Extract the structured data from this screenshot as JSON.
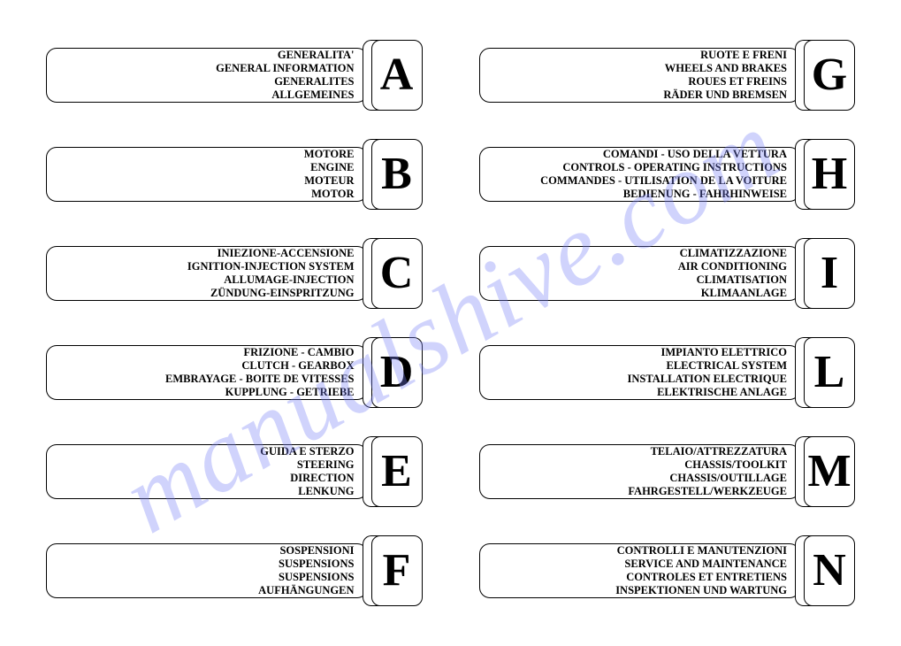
{
  "watermark": "manualshive.com",
  "left": [
    {
      "letter": "A",
      "lines": [
        "GENERALITA'",
        "GENERAL INFORMATION",
        "GENERALITES",
        "ALLGEMEINES"
      ]
    },
    {
      "letter": "B",
      "lines": [
        "MOTORE",
        "ENGINE",
        "MOTEUR",
        "MOTOR"
      ]
    },
    {
      "letter": "C",
      "lines": [
        "INIEZIONE-ACCENSIONE",
        "IGNITION-INJECTION SYSTEM",
        "ALLUMAGE-INJECTION",
        "ZÜNDUNG-EINSPRITZUNG"
      ]
    },
    {
      "letter": "D",
      "lines": [
        "FRIZIONE - CAMBIO",
        "CLUTCH - GEARBOX",
        "EMBRAYAGE - BOITE DE VITESSES",
        "KUPPLUNG - GETRIEBE"
      ]
    },
    {
      "letter": "E",
      "lines": [
        "GUIDA E STERZO",
        "STEERING",
        "DIRECTION",
        "LENKUNG"
      ]
    },
    {
      "letter": "F",
      "lines": [
        "SOSPENSIONI",
        "SUSPENSIONS",
        "SUSPENSIONS",
        "AUFHÄNGUNGEN"
      ]
    }
  ],
  "right": [
    {
      "letter": "G",
      "lines": [
        "RUOTE E FRENI",
        "WHEELS AND BRAKES",
        "ROUES ET FREINS",
        "RÄDER UND BREMSEN"
      ]
    },
    {
      "letter": "H",
      "lines": [
        "COMANDI - USO DELLA VETTURA",
        "CONTROLS - OPERATING INSTRUCTIONS",
        "COMMANDES - UTILISATION DE LA VOITURE",
        "BEDIENUNG - FAHRHINWEISE"
      ]
    },
    {
      "letter": "I",
      "lines": [
        "CLIMATIZZAZIONE",
        "AIR CONDITIONING",
        "CLIMATISATION",
        "KLIMAANLAGE"
      ]
    },
    {
      "letter": "L",
      "lines": [
        "IMPIANTO ELETTRICO",
        "ELECTRICAL SYSTEM",
        "INSTALLATION ELECTRIQUE",
        "ELEKTRISCHE ANLAGE"
      ]
    },
    {
      "letter": "M",
      "lines": [
        "TELAIO/ATTREZZATURA",
        "CHASSIS/TOOLKIT",
        "CHASSIS/OUTILLAGE",
        "FAHRGESTELL/WERKZEUGE"
      ]
    },
    {
      "letter": "N",
      "lines": [
        "CONTROLLI E MANUTENZIONI",
        "SERVICE AND MAINTENANCE",
        "CONTROLES ET ENTRETIENS",
        "INSPEKTIONEN UND WARTUNG"
      ]
    }
  ]
}
